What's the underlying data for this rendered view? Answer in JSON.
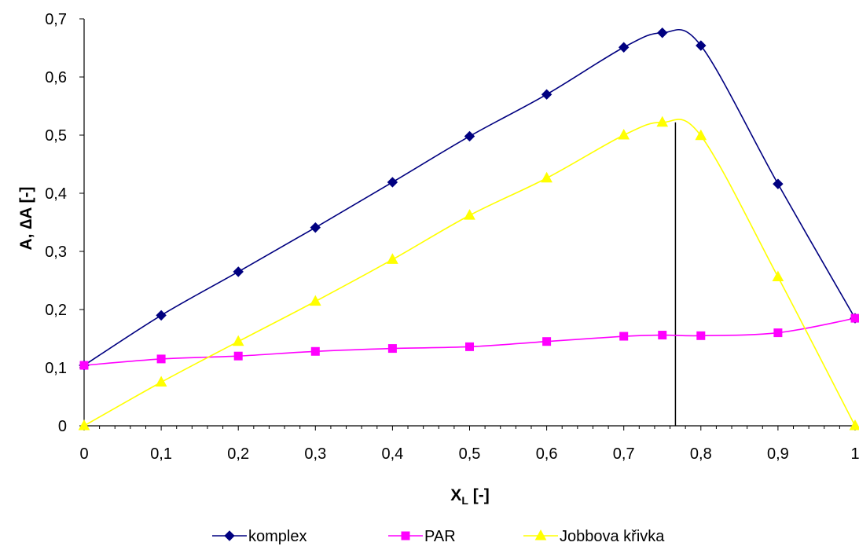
{
  "chart_data": {
    "type": "line",
    "xlabel": "X",
    "xlabel_sub": "L",
    "xlabel_unit": " [-]",
    "ylabel": "A, ∆A [-]",
    "xlim": [
      0,
      1
    ],
    "ylim": [
      0,
      0.7
    ],
    "x_ticks": [
      "0",
      "0,1",
      "0,2",
      "0,3",
      "0,4",
      "0,5",
      "0,6",
      "0,7",
      "0,8",
      "0,9",
      "1"
    ],
    "y_ticks": [
      "0",
      "0,1",
      "0,2",
      "0,3",
      "0,4",
      "0,5",
      "0,6",
      "0,7"
    ],
    "grid": false,
    "legend_position": "bottom",
    "series": [
      {
        "name": "komplex",
        "color": "#000080",
        "marker": "diamond",
        "x": [
          0,
          0.1,
          0.2,
          0.3,
          0.4,
          0.5,
          0.6,
          0.7,
          0.75,
          0.8,
          0.9,
          1
        ],
        "values": [
          0.104,
          0.19,
          0.265,
          0.341,
          0.419,
          0.498,
          0.57,
          0.651,
          0.676,
          0.654,
          0.416,
          0.185
        ]
      },
      {
        "name": "PAR",
        "color": "#ff00ff",
        "marker": "square",
        "x": [
          0,
          0.1,
          0.2,
          0.3,
          0.4,
          0.5,
          0.6,
          0.7,
          0.75,
          0.8,
          0.9,
          1
        ],
        "values": [
          0.104,
          0.115,
          0.12,
          0.128,
          0.133,
          0.136,
          0.145,
          0.154,
          0.156,
          0.155,
          0.16,
          0.185
        ]
      },
      {
        "name": "Jobbova křivka",
        "color": "#ffff00",
        "marker": "triangle",
        "x": [
          0,
          0.1,
          0.2,
          0.3,
          0.4,
          0.5,
          0.6,
          0.7,
          0.75,
          0.8,
          0.9,
          1
        ],
        "values": [
          0,
          0.075,
          0.145,
          0.214,
          0.286,
          0.362,
          0.426,
          0.5,
          0.522,
          0.499,
          0.256,
          0
        ]
      }
    ],
    "vertical_marker": {
      "x": 0.767,
      "y_top": 0.522,
      "color": "#000000"
    }
  }
}
